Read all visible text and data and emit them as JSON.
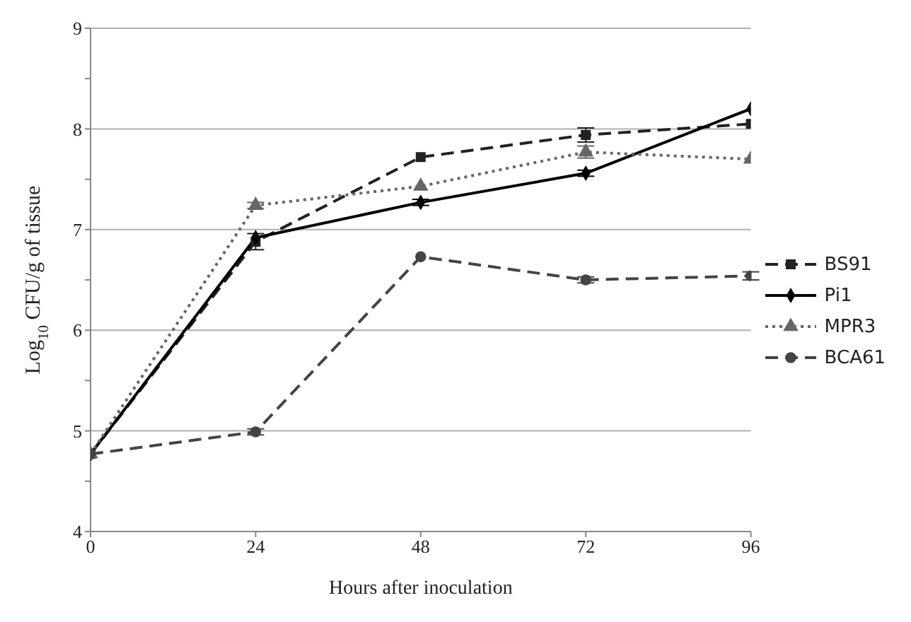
{
  "chart_data": {
    "type": "line",
    "xlabel": "Hours after inoculation",
    "ylabel": "Log$_{10}$ CFU/g of tissue",
    "x": [
      0,
      24,
      48,
      72,
      96
    ],
    "xlim": [
      0,
      96
    ],
    "xticks": [
      0,
      24,
      48,
      72,
      96
    ],
    "ylim": [
      4,
      9
    ],
    "yticks": [
      4,
      {
        "value": 4.5,
        "label": null
      },
      5,
      {
        "value": 5.5,
        "label": null
      },
      6,
      {
        "value": 6.5,
        "label": null
      },
      7,
      {
        "value": 7.5,
        "label": null
      },
      8,
      {
        "value": 8.5,
        "label": null
      },
      9
    ],
    "grid": "y",
    "legend": "right",
    "series": [
      {
        "name": "BS91",
        "color": "#222222",
        "marker": "square",
        "line_style": "dashed",
        "values": [
          4.77,
          6.88,
          7.72,
          7.94,
          8.05
        ],
        "errors": [
          null,
          0.08,
          null,
          0.07,
          null
        ]
      },
      {
        "name": "Pi1",
        "color": "#000000",
        "marker": "diamond",
        "line_style": "solid",
        "values": [
          4.77,
          6.92,
          7.27,
          7.56,
          8.2
        ],
        "errors": [
          null,
          null,
          0.03,
          0.03,
          null
        ]
      },
      {
        "name": "MPR3",
        "color": "#666666",
        "marker": "triangle",
        "line_style": "dotted",
        "values": [
          4.77,
          7.24,
          7.43,
          7.77,
          7.7
        ],
        "errors": [
          null,
          0.03,
          null,
          0.06,
          null
        ]
      },
      {
        "name": "BCA61",
        "color": "#444444",
        "marker": "circle",
        "line_style": "dashed",
        "values": [
          4.77,
          4.99,
          6.73,
          6.5,
          6.54
        ],
        "errors": [
          null,
          0.03,
          null,
          0.03,
          0.04
        ]
      }
    ]
  }
}
